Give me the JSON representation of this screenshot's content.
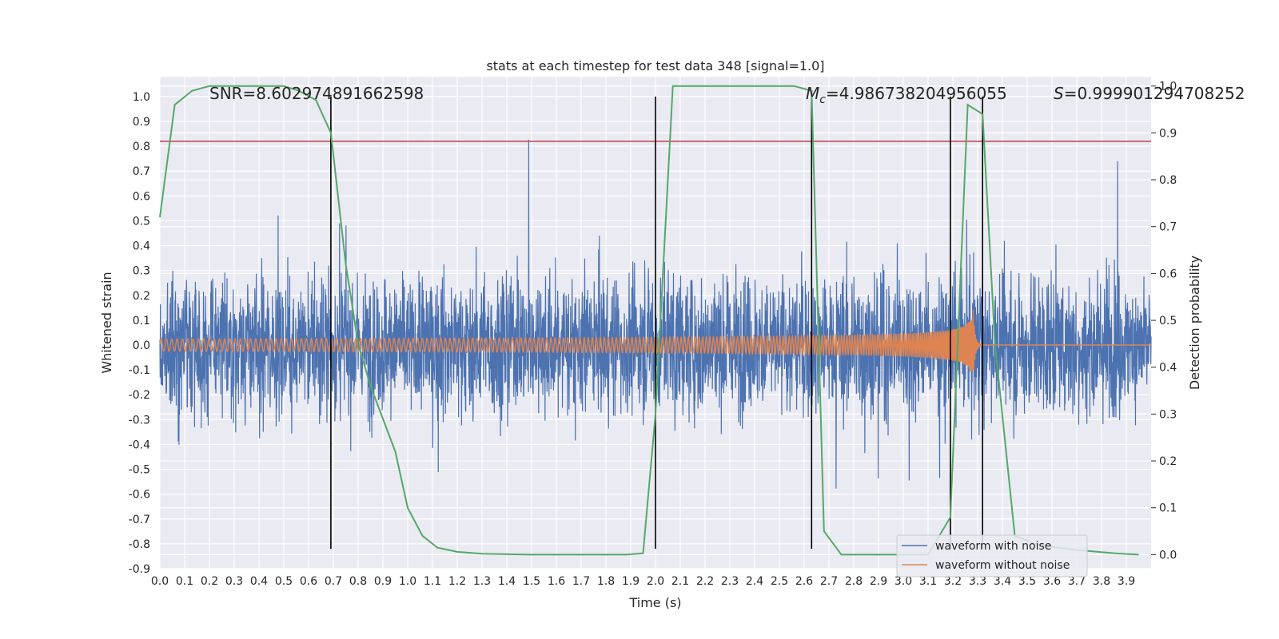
{
  "chart_data": {
    "type": "line",
    "title": "stats at each timestep for test data 348 [signal=1.0]",
    "xlabel": "Time (s)",
    "ylabel": "Whitened strain",
    "y2label": "Detection probability",
    "xlim": [
      0.0,
      4.0
    ],
    "ylim": [
      -0.9,
      1.08
    ],
    "y2lim": [
      -0.03,
      1.02
    ],
    "x_ticks": [
      "0.0",
      "0.1",
      "0.2",
      "0.3",
      "0.4",
      "0.5",
      "0.6",
      "0.7",
      "0.8",
      "0.9",
      "1.0",
      "1.1",
      "1.2",
      "1.3",
      "1.4",
      "1.5",
      "1.6",
      "1.7",
      "1.8",
      "1.9",
      "2.0",
      "2.1",
      "2.2",
      "2.3",
      "2.4",
      "2.5",
      "2.6",
      "2.7",
      "2.8",
      "2.9",
      "3.0",
      "3.1",
      "3.2",
      "3.3",
      "3.4",
      "3.5",
      "3.6",
      "3.7",
      "3.8",
      "3.9"
    ],
    "y_ticks": [
      "1.0",
      "0.9",
      "0.8",
      "0.7",
      "0.6",
      "0.5",
      "0.4",
      "0.3",
      "0.2",
      "0.1",
      "0.0",
      "-0.1",
      "-0.2",
      "-0.3",
      "-0.4",
      "-0.5",
      "-0.6",
      "-0.7",
      "-0.8",
      "-0.9"
    ],
    "y2_ticks": [
      "1.0",
      "0.9",
      "0.8",
      "0.7",
      "0.6",
      "0.5",
      "0.4",
      "0.3",
      "0.2",
      "0.1",
      "0.0"
    ],
    "grid": true,
    "legend_position": "lower-right",
    "annotations": {
      "snr": "SNR=8.602974891662598",
      "mc_symbol": "M",
      "mc_sub": "c",
      "mc_value": "=4.986738204956055",
      "s_symbol": "S",
      "s_value": "=0.999901294708252"
    },
    "threshold_y": 0.82,
    "vertical_lines_x": [
      0.69,
      2.0,
      2.63,
      3.19,
      3.32
    ],
    "noise_params": {
      "seed": 348,
      "sigma": 0.19,
      "max": 1.0,
      "min": -0.82
    },
    "chirp_params": {
      "t_merge": 3.28,
      "amp_start": 0.025,
      "amp_peak": 0.18,
      "f_start": 46,
      "f_end": 220
    },
    "series": [
      {
        "name": "waveform with noise",
        "color": "#4c72b0",
        "kind": "noise"
      },
      {
        "name": "waveform without noise",
        "color": "#dd8452",
        "kind": "chirp"
      },
      {
        "name": "",
        "color": "#55a868",
        "axis": "right",
        "x": [
          0.0,
          0.06,
          0.13,
          0.2,
          0.3,
          0.4,
          0.5,
          0.56,
          0.63,
          0.69,
          0.75,
          0.8,
          0.85,
          0.9,
          0.95,
          1.0,
          1.06,
          1.12,
          1.2,
          1.3,
          1.5,
          1.7,
          1.88,
          1.95,
          2.0,
          2.07,
          2.2,
          2.4,
          2.56,
          2.63,
          2.68,
          2.75,
          2.9,
          3.0,
          3.1,
          3.19,
          3.26,
          3.32,
          3.37,
          3.45,
          3.55,
          3.7,
          3.85,
          3.95
        ],
        "values": [
          0.72,
          0.96,
          0.99,
          1.0,
          1.0,
          1.0,
          1.0,
          0.99,
          0.97,
          0.9,
          0.62,
          0.45,
          0.36,
          0.29,
          0.22,
          0.1,
          0.04,
          0.015,
          0.006,
          0.002,
          0.0,
          0.0,
          0.0,
          0.003,
          0.3,
          1.0,
          1.0,
          1.0,
          1.0,
          0.99,
          0.05,
          0.0,
          0.0,
          0.0,
          0.0,
          0.08,
          0.96,
          0.94,
          0.45,
          0.04,
          0.02,
          0.01,
          0.003,
          0.0
        ]
      }
    ]
  }
}
